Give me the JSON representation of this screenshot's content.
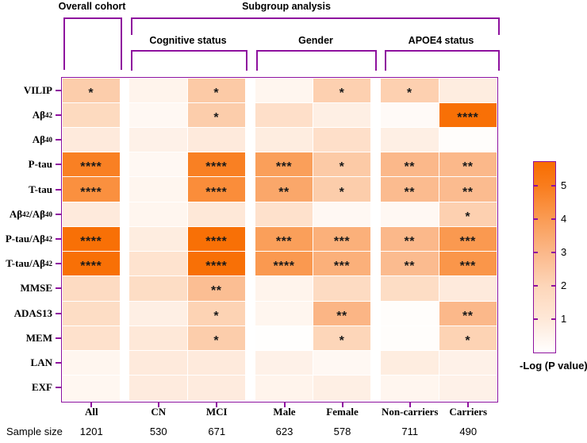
{
  "colors": {
    "accent_purple": "#8E119E",
    "star_color": "#191919",
    "heat_low": "#FFFFFF",
    "heat_high": "#F86D00"
  },
  "chart_data": {
    "type": "heatmap",
    "title": "",
    "group_headers": {
      "overall": "Overall cohort",
      "subgroup": "Subgroup analysis",
      "cognitive": "Cognitive status",
      "gender": "Gender",
      "apoe4": "APOE4 status"
    },
    "column_groups": [
      {
        "label": "Overall cohort",
        "columns": [
          "All"
        ]
      },
      {
        "label": "Cognitive status",
        "columns": [
          "CN",
          "MCI"
        ]
      },
      {
        "label": "Gender",
        "columns": [
          "Male",
          "Female"
        ]
      },
      {
        "label": "APOE4 status",
        "columns": [
          "Non-carriers",
          "Carriers"
        ]
      }
    ],
    "rows": [
      "VILIP",
      "Aβ_{42}",
      "Aβ_{40}",
      "P-tau",
      "T-tau",
      "Aβ_{42}/Aβ_{40}",
      "P-tau/Aβ_{42}",
      "T-tau/Aβ_{42}",
      "MMSE",
      "ADAS13",
      "MEM",
      "LAN",
      "EXF"
    ],
    "columns": [
      "All",
      "CN",
      "MCI",
      "Male",
      "Female",
      "Non-carriers",
      "Carriers"
    ],
    "sample_size_label": "Sample size",
    "sample_sizes": [
      "1201",
      "530",
      "671",
      "623",
      "578",
      "711",
      "490"
    ],
    "values": [
      [
        2.3,
        0.5,
        2.4,
        0.4,
        2.2,
        2.2,
        0.8
      ],
      [
        1.8,
        0.3,
        2.3,
        1.5,
        0.7,
        0.2,
        5.6
      ],
      [
        0.9,
        0.6,
        0.9,
        0.8,
        1.5,
        0.7,
        0.1
      ],
      [
        4.9,
        0.3,
        4.9,
        3.9,
        2.4,
        3.0,
        3.0
      ],
      [
        4.4,
        0.4,
        4.5,
        3.6,
        2.3,
        2.9,
        2.9
      ],
      [
        0.9,
        0.4,
        1.0,
        1.4,
        0.3,
        0.3,
        2.2
      ],
      [
        5.6,
        0.8,
        5.6,
        3.9,
        3.3,
        3.0,
        4.1
      ],
      [
        5.6,
        1.3,
        5.6,
        4.1,
        3.3,
        2.9,
        4.2
      ],
      [
        1.7,
        1.6,
        2.8,
        0.5,
        1.7,
        1.6,
        0.9
      ],
      [
        1.6,
        0.7,
        2.1,
        0.4,
        3.1,
        0.1,
        3.0
      ],
      [
        1.4,
        1.0,
        2.3,
        0.05,
        2.0,
        0.1,
        2.1
      ],
      [
        0.4,
        0.9,
        0.9,
        0.6,
        0.3,
        0.8,
        0.6
      ],
      [
        0.35,
        0.85,
        0.85,
        0.5,
        0.7,
        0.4,
        0.6
      ]
    ],
    "significance": [
      [
        "*",
        "",
        "*",
        "",
        "*",
        "*",
        ""
      ],
      [
        "",
        "",
        "*",
        "",
        "",
        "",
        "****"
      ],
      [
        "",
        "",
        "",
        "",
        "",
        "",
        ""
      ],
      [
        "****",
        "",
        "****",
        "***",
        "*",
        "**",
        "**"
      ],
      [
        "****",
        "",
        "****",
        "**",
        "*",
        "**",
        "**"
      ],
      [
        "",
        "",
        "",
        "",
        "",
        "",
        "*"
      ],
      [
        "****",
        "",
        "****",
        "***",
        "***",
        "**",
        "***"
      ],
      [
        "****",
        "",
        "****",
        "****",
        "***",
        "**",
        "***"
      ],
      [
        "",
        "",
        "**",
        "",
        "",
        "",
        ""
      ],
      [
        "",
        "",
        "*",
        "",
        "**",
        "",
        "**"
      ],
      [
        "",
        "",
        "*",
        "",
        "*",
        "",
        "*"
      ],
      [
        "",
        "",
        "",
        "",
        "",
        "",
        ""
      ],
      [
        "",
        "",
        "",
        "",
        "",
        "",
        ""
      ]
    ],
    "colorbar": {
      "label": "-Log (P value)",
      "ticks": [
        1,
        2,
        3,
        4,
        5
      ],
      "min": 0,
      "max": 5.74,
      "gradient_stops": [
        {
          "v": 0,
          "color": "#FFFFFF"
        },
        {
          "v": 1,
          "color": "#FEE8D8"
        },
        {
          "v": 2,
          "color": "#FDD6B9"
        },
        {
          "v": 3,
          "color": "#FBB88A"
        },
        {
          "v": 4,
          "color": "#FA9C55"
        },
        {
          "v": 5,
          "color": "#F97D1E"
        },
        {
          "v": 5.74,
          "color": "#F86D00"
        }
      ]
    }
  }
}
